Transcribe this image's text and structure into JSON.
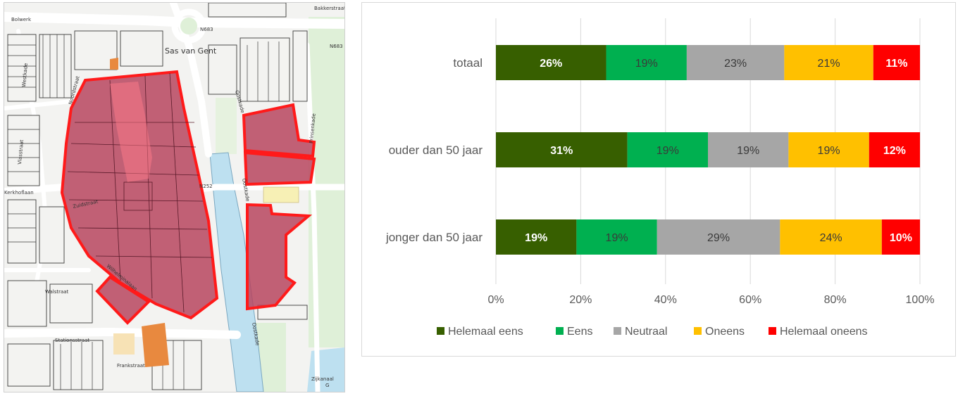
{
  "map": {
    "labels": {
      "sas_van_gent": "Sas van Gent",
      "n683_a": "N683",
      "n683_b": "N683",
      "n252": "N252",
      "bolwerk": "Bolwerk",
      "oostkade_a": "Oostkade",
      "oostkade_b": "Oostkade",
      "prinsenkade": "Prinsenkade",
      "walstraat": "Walstraat",
      "stationsstraat": "Stationsstraat",
      "zijkanaal": "Zijkanaal",
      "zijkanaal_g": "G",
      "kerkhoflaan": "Kerkhoflaan",
      "vlasstraat": "Vlasstraat",
      "westkade_label": "Westkade",
      "wilhelminalaan": "Wilhelminalaan",
      "zuidstraat": "Zuidstraat",
      "noordstraat": "Noordstraat",
      "frankstraat": "Frankstraat",
      "oostkade_c": "Oostkade",
      "bakkerstraat": "Bakkerstraat"
    },
    "colors": {
      "background": "#f3f3f1",
      "street": "#ffffff",
      "block_line": "#3a3a3a",
      "water": "#bde0f0",
      "green": "#dff0d8",
      "highlight_fill": "#b7455f",
      "highlight_stroke": "#ff1a1a",
      "orange": "#e8893f",
      "yellow": "#f7f0b5"
    }
  },
  "chart_data": {
    "type": "bar",
    "orientation": "horizontal",
    "stacked": true,
    "categories": [
      "totaal",
      "ouder dan 50 jaar",
      "jonger dan 50 jaar"
    ],
    "series": [
      {
        "name": "Helemaal eens",
        "color": "#375f00",
        "label_color": "#ffffff",
        "values": [
          26,
          31,
          19
        ],
        "labels": [
          "26%",
          "31%",
          "19%"
        ]
      },
      {
        "name": "Eens",
        "color": "#00b050",
        "label_color": "#3a3a3a",
        "values": [
          19,
          19,
          19
        ],
        "labels": [
          "19%",
          "19%",
          "19%"
        ]
      },
      {
        "name": "Neutraal",
        "color": "#a6a6a6",
        "label_color": "#3a3a3a",
        "values": [
          23,
          19,
          29
        ],
        "labels": [
          "23%",
          "19%",
          "29%"
        ]
      },
      {
        "name": "Oneens",
        "color": "#ffc000",
        "label_color": "#3a3a3a",
        "values": [
          21,
          19,
          24
        ],
        "labels": [
          "21%",
          "19%",
          "24%"
        ]
      },
      {
        "name": "Helemaal oneens",
        "color": "#ff0000",
        "label_color": "#ffffff",
        "values": [
          11,
          12,
          10
        ],
        "labels": [
          "11%",
          "12%",
          "10%"
        ]
      }
    ],
    "xlim": [
      0,
      100
    ],
    "xticks": [
      0,
      20,
      40,
      60,
      80,
      100
    ],
    "xtick_labels": [
      "0%",
      "20%",
      "40%",
      "60%",
      "80%",
      "100%"
    ],
    "grid": true,
    "legend_position": "bottom",
    "title": "",
    "xlabel": "",
    "ylabel": ""
  }
}
